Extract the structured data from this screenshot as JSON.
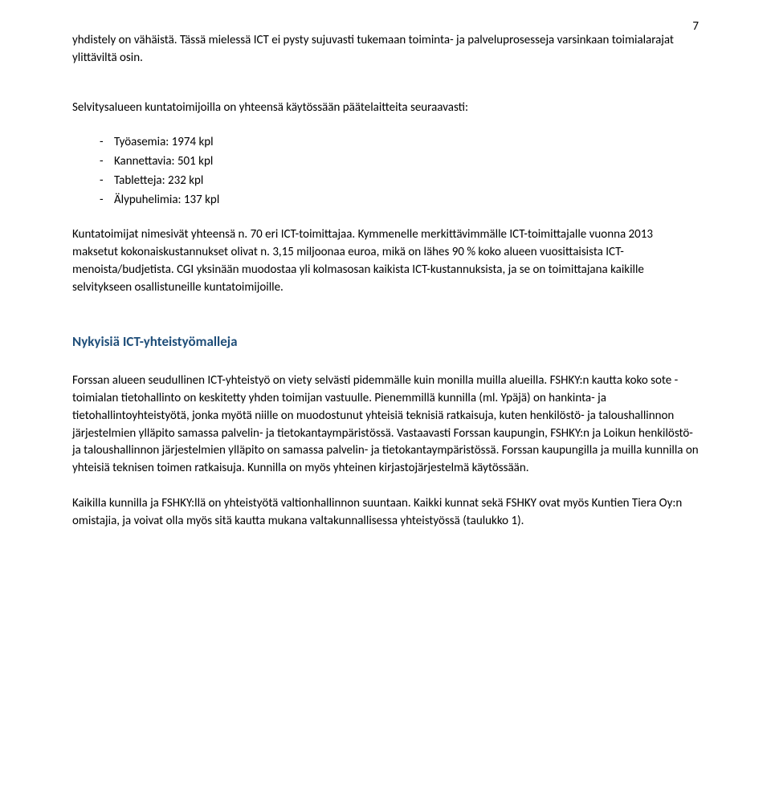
{
  "pageNumber": "7",
  "para1": "yhdistely on vähäistä. Tässä mielessä ICT ei pysty sujuvasti tukemaan toiminta- ja palveluprosesseja varsinkaan toimialarajat ylittäviltä osin.",
  "para2": "Selvitysalueen kuntatoimijoilla on yhteensä käytössään päätelaitteita seuraavasti:",
  "devices": [
    "Työasemia: 1974 kpl",
    "Kannettavia: 501 kpl",
    "Tabletteja: 232 kpl",
    "Älypuhelimia: 137 kpl"
  ],
  "para3": "Kuntatoimijat nimesivät yhteensä n. 70 eri ICT-toimittajaa. Kymmenelle merkittävimmälle ICT-toimittajalle vuonna 2013 maksetut kokonaiskustannukset olivat n. 3,15 miljoonaa euroa, mikä on lähes 90 % koko alueen vuosittaisista ICT-menoista/budjetista. CGI yksinään muodostaa yli kolmasosan kaikista ICT-kustannuksista, ja se on toimittajana kaikille selvitykseen osallistuneille kuntatoimijoille.",
  "heading": "Nykyisiä ICT-yhteistyömalleja",
  "para4": "Forssan alueen seudullinen ICT-yhteistyö on viety selvästi pidemmälle kuin monilla muilla alueilla. FSHKY:n kautta koko sote -toimialan tietohallinto on keskitetty yhden toimijan vastuulle. Pienemmillä kunnilla (ml. Ypäjä) on hankinta- ja tietohallintoyhteistyötä, jonka myötä niille on muodostunut yhteisiä teknisiä ratkaisuja, kuten henkilöstö- ja taloushallinnon järjestelmien ylläpito samassa palvelin- ja tietokantaympäristössä. Vastaavasti Forssan kaupungin, FSHKY:n ja Loikun henkilöstö- ja taloushallinnon järjestelmien ylläpito on samassa palvelin- ja tietokantaympäristössä.  Forssan kaupungilla ja muilla kunnilla on yhteisiä teknisen toimen ratkaisuja. Kunnilla on myös yhteinen kirjastojärjestelmä käytössään.",
  "para5": "Kaikilla kunnilla ja FSHKY:llä on yhteistyötä valtionhallinnon suuntaan. Kaikki kunnat sekä FSHKY ovat myös Kuntien Tiera Oy:n omistajia, ja voivat olla myös sitä kautta mukana valtakunnallisessa yhteistyössä (taulukko 1)."
}
